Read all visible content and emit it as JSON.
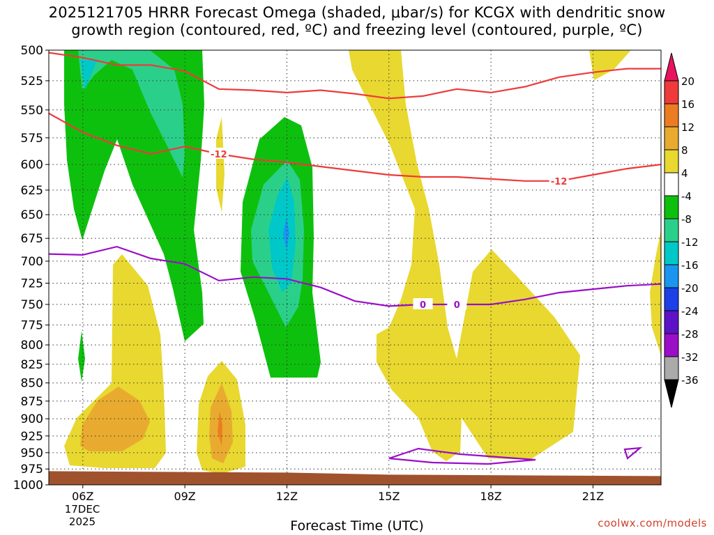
{
  "title": {
    "line1": "2025121705 HRRR Forecast Omega (shaded, μbar/s) for KCGX with dendritic snow",
    "line2": "growth region (contoured, red, ºC) and freezing level (contoured, purple, ºC)"
  },
  "xlabel": "Forecast Time (UTC)",
  "date_label": [
    "17DEC",
    "2025"
  ],
  "credit": "coolwx.com/models",
  "chart_data": {
    "type": "heatmap",
    "y_axis": {
      "label": "",
      "ticks": [
        500,
        525,
        550,
        575,
        600,
        625,
        650,
        675,
        700,
        725,
        750,
        775,
        800,
        825,
        850,
        875,
        900,
        925,
        950,
        975,
        1000
      ],
      "range": [
        500,
        1000
      ],
      "inverted_log": true
    },
    "x_axis": {
      "ticks": [
        "06Z",
        "09Z",
        "12Z",
        "15Z",
        "18Z",
        "21Z"
      ],
      "tick_hours": [
        6,
        9,
        12,
        15,
        18,
        21
      ],
      "range_hours": [
        5,
        23
      ]
    },
    "colorbar": {
      "levels": [
        20,
        16,
        12,
        8,
        4,
        -4,
        -8,
        -12,
        -16,
        -20,
        -24,
        -28,
        -32,
        -36
      ],
      "colors": [
        "#e8135e",
        "#ee3a3a",
        "#ec7c22",
        "#e8ab2f",
        "#e8d830",
        "#ffffff",
        "#0ec00e",
        "#2ad08a",
        "#00c8c8",
        "#1a96f0",
        "#1c40e8",
        "#5d12c8",
        "#9a0ec8",
        "#aaaaaa",
        "#000000"
      ]
    },
    "contours": [
      {
        "color": "#ee3a3a",
        "label": "-12",
        "points": [
          [
            5,
            502
          ],
          [
            6,
            506
          ],
          [
            7,
            512
          ],
          [
            8,
            512
          ],
          [
            9,
            517
          ],
          [
            10,
            532
          ],
          [
            11,
            533
          ],
          [
            12,
            535
          ],
          [
            13,
            533
          ],
          [
            14,
            536
          ],
          [
            15,
            540
          ],
          [
            16,
            538
          ],
          [
            17,
            532
          ],
          [
            18,
            535
          ],
          [
            19,
            530
          ],
          [
            20,
            522
          ],
          [
            21,
            518
          ],
          [
            22,
            515
          ],
          [
            23,
            515
          ]
        ]
      },
      {
        "color": "#ee3a3a",
        "label": "-12",
        "points": [
          [
            5,
            553
          ],
          [
            6,
            570
          ],
          [
            7,
            582
          ],
          [
            8,
            590
          ],
          [
            9,
            583
          ],
          [
            10,
            590
          ],
          [
            11,
            595
          ],
          [
            12,
            598
          ],
          [
            13,
            602
          ],
          [
            14,
            606
          ],
          [
            15,
            610
          ],
          [
            16,
            612
          ],
          [
            17,
            612
          ],
          [
            18,
            614
          ],
          [
            19,
            616
          ],
          [
            20,
            616
          ],
          [
            21,
            610
          ],
          [
            22,
            604
          ],
          [
            23,
            600
          ]
        ]
      },
      {
        "color": "#9a0ec8",
        "label": "0",
        "points": [
          [
            5,
            692
          ],
          [
            6,
            693
          ],
          [
            7,
            684
          ],
          [
            8,
            697
          ],
          [
            9,
            703
          ],
          [
            10,
            722
          ],
          [
            11,
            718
          ],
          [
            12,
            720
          ],
          [
            13,
            730
          ],
          [
            14,
            746
          ],
          [
            15,
            752
          ],
          [
            16,
            750
          ],
          [
            17,
            750
          ],
          [
            18,
            750
          ],
          [
            19,
            744
          ],
          [
            20,
            736
          ],
          [
            21,
            732
          ],
          [
            22,
            728
          ],
          [
            23,
            726
          ]
        ]
      }
    ],
    "terrain": {
      "color": "#a0522d",
      "surface_hpa": 985
    }
  }
}
